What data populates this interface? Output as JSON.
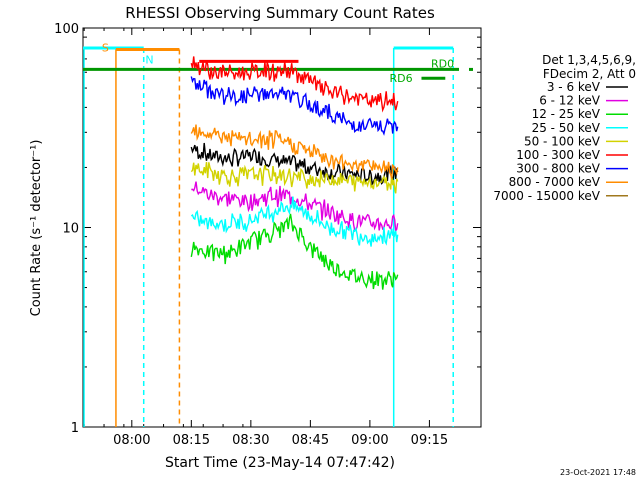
{
  "chart_data": {
    "type": "line",
    "title": "RHESSI Observing Summary Count Rates",
    "xlabel": "Start Time (23-May-14 07:47:42)",
    "ylabel": "Count Rate (s⁻¹ detector⁻¹)",
    "yscale": "log",
    "ylim": [
      1,
      100
    ],
    "xlim": [
      "07:47:42",
      "09:28:00"
    ],
    "y_ticks": [
      "1",
      "10",
      "100"
    ],
    "x_ticks": [
      "08:00",
      "08:15",
      "08:30",
      "08:45",
      "09:00",
      "09:15"
    ],
    "footer": "23-Oct-2021 17:48",
    "legend": {
      "header_1": "Det 1,3,4,5,6,9,",
      "header_2": "FDecim 2, Att 0",
      "placement": "right"
    },
    "series": [
      {
        "name": "3 - 6 keV",
        "color": "#000000",
        "x": [
          "08:15",
          "08:20",
          "08:25",
          "08:30",
          "08:35",
          "08:40",
          "08:45",
          "08:50",
          "08:55",
          "09:00",
          "09:05",
          "09:07"
        ],
        "y": [
          25,
          23,
          22,
          23,
          22,
          21,
          20,
          19,
          18.5,
          18,
          18.5,
          19
        ]
      },
      {
        "name": "6 - 12 keV",
        "color": "#e100e1",
        "x": [
          "08:15",
          "08:20",
          "08:25",
          "08:30",
          "08:35",
          "08:40",
          "08:45",
          "08:50",
          "08:55",
          "09:00",
          "09:05",
          "09:07"
        ],
        "y": [
          16,
          14.5,
          14,
          13.5,
          14.5,
          14.5,
          13,
          12,
          11,
          10.5,
          10.5,
          10.5
        ]
      },
      {
        "name": "12 - 25 keV",
        "color": "#00dc00",
        "x": [
          "08:15",
          "08:20",
          "08:25",
          "08:30",
          "08:35",
          "08:40",
          "08:45",
          "08:50",
          "08:55",
          "09:00",
          "09:05",
          "09:07"
        ],
        "y": [
          8,
          7.5,
          7.5,
          8.5,
          9.5,
          10.5,
          8,
          6.5,
          5.8,
          5.5,
          5.5,
          5.8
        ]
      },
      {
        "name": "25 - 50 keV",
        "color": "#00ffff",
        "x": [
          "08:15",
          "08:20",
          "08:25",
          "08:30",
          "08:35",
          "08:40",
          "08:45",
          "08:50",
          "08:55",
          "09:00",
          "09:05",
          "09:07"
        ],
        "y": [
          11,
          10.5,
          10.5,
          11,
          12,
          13,
          11.5,
          10,
          9.5,
          9,
          9,
          9.2
        ]
      },
      {
        "name": "50 - 100 keV",
        "color": "#d2d200",
        "x": [
          "08:15",
          "08:20",
          "08:25",
          "08:30",
          "08:35",
          "08:40",
          "08:45",
          "08:50",
          "08:55",
          "09:00",
          "09:05",
          "09:07"
        ],
        "y": [
          20,
          19,
          18,
          18.5,
          18.5,
          18,
          17.5,
          17.5,
          17,
          17,
          17,
          17
        ]
      },
      {
        "name": "100 - 300 keV",
        "color": "#ff0000",
        "x": [
          "08:15",
          "08:20",
          "08:25",
          "08:30",
          "08:35",
          "08:40",
          "08:45",
          "08:50",
          "08:55",
          "09:00",
          "09:05",
          "09:07"
        ],
        "y": [
          68,
          61,
          59,
          60,
          61,
          61,
          54,
          48,
          45,
          43,
          43,
          43
        ]
      },
      {
        "name": "300 - 800 keV",
        "color": "#0000ff",
        "x": [
          "08:15",
          "08:20",
          "08:25",
          "08:30",
          "08:35",
          "08:40",
          "08:45",
          "08:50",
          "08:55",
          "09:00",
          "09:05",
          "09:07"
        ],
        "y": [
          54,
          48,
          45,
          46,
          47,
          46,
          41,
          37,
          33,
          32,
          32,
          32
        ]
      },
      {
        "name": "800 - 7000 keV",
        "color": "#ff8c00",
        "x": [
          "08:15",
          "08:20",
          "08:25",
          "08:30",
          "08:35",
          "08:40",
          "08:45",
          "08:50",
          "08:55",
          "09:00",
          "09:05",
          "09:07"
        ],
        "y": [
          32,
          29.5,
          28,
          27.5,
          27.5,
          26.5,
          24,
          22,
          21,
          20.5,
          20,
          20
        ]
      },
      {
        "name": "7000 - 15000 keV",
        "color": "#a0781e",
        "x": [],
        "y": []
      }
    ],
    "annotations": {
      "orange": {
        "color": "#ff8c00",
        "start_label": "S",
        "end_label": "N"
      },
      "cyan_segments": [
        [
          "07:47:42",
          "08:03"
        ],
        [
          "09:06",
          "09:21"
        ]
      ],
      "cyan_lines": [
        {
          "time": "08:03",
          "style": "dashed"
        },
        {
          "time": "09:06",
          "style": "solid"
        },
        {
          "time": "09:21",
          "style": "dashed"
        }
      ],
      "rhessi_level": 62,
      "orange_bar": {
        "from": "07:56",
        "to": "08:12",
        "level": 78
      },
      "orange_lines": [
        {
          "time": "07:56",
          "style": "solid"
        },
        {
          "time": "08:12",
          "style": "dashed"
        }
      ],
      "red_bar": {
        "from": "08:17",
        "to": "08:42",
        "level": 68
      },
      "labels": [
        {
          "text": "RD0",
          "color": "#00aa00"
        },
        {
          "text": "RD6",
          "color": "#00aa00"
        }
      ],
      "rd6_bar": {
        "from": "09:13",
        "to": "09:19",
        "level": 56
      },
      "green_line_color": "#009600",
      "cyan_color": "#00ffff"
    }
  }
}
